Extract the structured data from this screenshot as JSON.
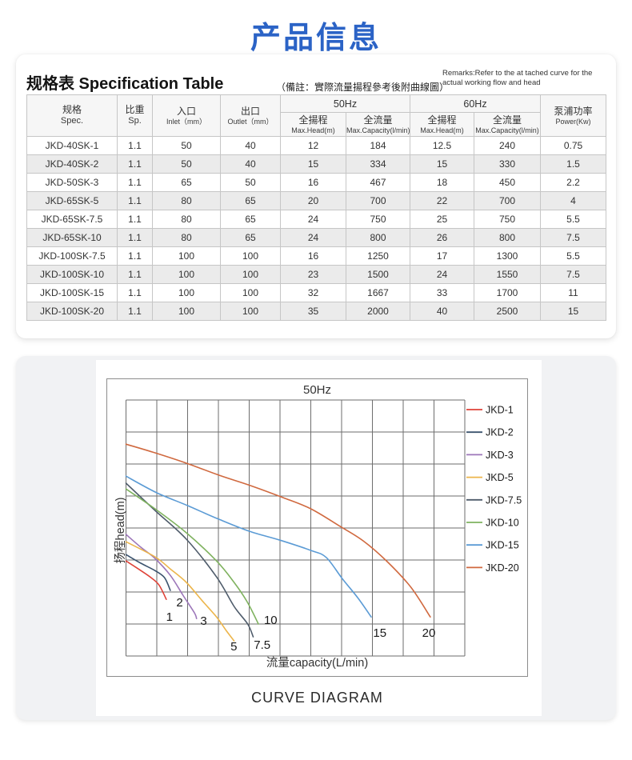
{
  "title": "产品信息",
  "accent_color": "#2b63c6",
  "spec": {
    "title": "规格表 Specification Table",
    "note": "（備註：實際流量揚程參考後附曲線圖）",
    "remarks": "Remarks:Refer to the at tached curve for the actual working flow and head",
    "table": {
      "columns": [
        {
          "zh": "规格",
          "en": "Spec."
        },
        {
          "zh": "比重",
          "en": "Sp."
        },
        {
          "zh": "入口",
          "en": "Inlet（mm）"
        },
        {
          "zh": "出口",
          "en": "Outlet（mm）"
        }
      ],
      "groups": [
        {
          "label": "50Hz",
          "children": [
            {
              "zh": "全揚程",
              "en": "Max.Head(m)"
            },
            {
              "zh": "全流量",
              "en": "Max.Capacity(l/min)"
            }
          ]
        },
        {
          "label": "60Hz",
          "children": [
            {
              "zh": "全揚程",
              "en": "Max.Head(m)"
            },
            {
              "zh": "全流量",
              "en": "Max.Capacity(l/min)"
            }
          ]
        }
      ],
      "power": {
        "zh": "泵浦功率",
        "en": "Power(Kw)"
      },
      "rows": [
        [
          "JKD-40SK-1",
          "1.1",
          "50",
          "40",
          "12",
          "184",
          "12.5",
          "240",
          "0.75"
        ],
        [
          "JKD-40SK-2",
          "1.1",
          "50",
          "40",
          "15",
          "334",
          "15",
          "330",
          "1.5"
        ],
        [
          "JKD-50SK-3",
          "1.1",
          "65",
          "50",
          "16",
          "467",
          "18",
          "450",
          "2.2"
        ],
        [
          "JKD-65SK-5",
          "1.1",
          "80",
          "65",
          "20",
          "700",
          "22",
          "700",
          "4"
        ],
        [
          "JKD-65SK-7.5",
          "1.1",
          "80",
          "65",
          "24",
          "750",
          "25",
          "750",
          "5.5"
        ],
        [
          "JKD-65SK-10",
          "1.1",
          "80",
          "65",
          "24",
          "800",
          "26",
          "800",
          "7.5"
        ],
        [
          "JKD-100SK-7.5",
          "1.1",
          "100",
          "100",
          "16",
          "1250",
          "17",
          "1300",
          "5.5"
        ],
        [
          "JKD-100SK-10",
          "1.1",
          "100",
          "100",
          "23",
          "1500",
          "24",
          "1550",
          "7.5"
        ],
        [
          "JKD-100SK-15",
          "1.1",
          "100",
          "100",
          "32",
          "1667",
          "33",
          "1700",
          "11"
        ],
        [
          "JKD-100SK-20",
          "1.1",
          "100",
          "100",
          "35",
          "2000",
          "40",
          "2500",
          "15"
        ]
      ]
    }
  },
  "chart_data": {
    "type": "line",
    "title": "50Hz",
    "xlabel": "流量capacity(L/min)",
    "ylabel": "扬程head(m)",
    "caption": "CURVE DIAGRAM",
    "legend_position": "right",
    "grid": {
      "cols": 11,
      "rows": 8,
      "tick_labels": "none shown on axes"
    },
    "points_units": "grid cells (x: 0-11 columns, y: 0-8 rows from top), curves digitized from plot",
    "series": [
      {
        "name": "JKD-1",
        "color": "#df4338",
        "end_label": {
          "text": "1",
          "gx": 1.41,
          "gy": 6.9,
          "anchor": "middle"
        },
        "points": [
          [
            0,
            5.03
          ],
          [
            0.48,
            5.33
          ],
          [
            0.81,
            5.55
          ],
          [
            1.07,
            5.78
          ],
          [
            1.31,
            6.23
          ]
        ]
      },
      {
        "name": "JKD-2",
        "color": "#3b536e",
        "end_label": {
          "text": "2",
          "gx": 1.74,
          "gy": 6.45,
          "anchor": "middle"
        },
        "points": [
          [
            0,
            4.83
          ],
          [
            0.48,
            5.1
          ],
          [
            0.94,
            5.33
          ],
          [
            1.25,
            5.55
          ],
          [
            1.44,
            5.95
          ]
        ]
      },
      {
        "name": "JKD-3",
        "color": "#9c76b9",
        "end_label": {
          "text": "3",
          "gx": 2.52,
          "gy": 7.02,
          "anchor": "middle"
        },
        "points": [
          [
            0,
            4.2
          ],
          [
            0.48,
            4.6
          ],
          [
            0.94,
            4.95
          ],
          [
            1.44,
            5.48
          ],
          [
            1.85,
            6.1
          ],
          [
            2.22,
            6.65
          ],
          [
            2.29,
            6.83
          ]
        ]
      },
      {
        "name": "JKD-5",
        "color": "#ecb54b",
        "end_label": {
          "text": "5",
          "gx": 3.5,
          "gy": 7.83,
          "anchor": "middle"
        },
        "points": [
          [
            0,
            4.43
          ],
          [
            0.94,
            4.9
          ],
          [
            1.44,
            5.28
          ],
          [
            1.96,
            5.7
          ],
          [
            2.48,
            6.28
          ],
          [
            2.94,
            6.78
          ],
          [
            3.25,
            7.2
          ],
          [
            3.51,
            7.53
          ]
        ]
      },
      {
        "name": "JKD-7.5",
        "color": "#4f5c6b",
        "end_label": {
          "text": "7.5",
          "gx": 4.42,
          "gy": 7.78,
          "anchor": "middle"
        },
        "points": [
          [
            0,
            2.6
          ],
          [
            0.94,
            3.45
          ],
          [
            1.96,
            4.35
          ],
          [
            2.94,
            5.53
          ],
          [
            3.51,
            6.45
          ],
          [
            3.95,
            7.0
          ],
          [
            4.13,
            7.4
          ]
        ]
      },
      {
        "name": "JKD-10",
        "color": "#7fb25f",
        "end_label": {
          "text": "10",
          "gx": 4.48,
          "gy": 7.0,
          "anchor": "start"
        },
        "points": [
          [
            0,
            2.78
          ],
          [
            0.94,
            3.4
          ],
          [
            1.96,
            4.15
          ],
          [
            2.94,
            5.03
          ],
          [
            3.51,
            5.7
          ],
          [
            3.93,
            6.3
          ],
          [
            4.3,
            7.0
          ]
        ]
      },
      {
        "name": "JKD-15",
        "color": "#5b9bd5",
        "end_label": {
          "text": "15",
          "gx": 8.24,
          "gy": 7.4,
          "anchor": "middle"
        },
        "points": [
          [
            0,
            2.38
          ],
          [
            1,
            2.9
          ],
          [
            2,
            3.3
          ],
          [
            3,
            3.72
          ],
          [
            4,
            4.1
          ],
          [
            5,
            4.38
          ],
          [
            6,
            4.7
          ],
          [
            6.5,
            4.92
          ],
          [
            7.02,
            5.58
          ],
          [
            7.54,
            6.2
          ],
          [
            7.96,
            6.78
          ]
        ]
      },
      {
        "name": "JKD-20",
        "color": "#d0693f",
        "end_label": {
          "text": "20",
          "gx": 9.83,
          "gy": 7.4,
          "anchor": "middle"
        },
        "points": [
          [
            0,
            1.38
          ],
          [
            0.94,
            1.65
          ],
          [
            1.98,
            1.98
          ],
          [
            3.02,
            2.35
          ],
          [
            4.06,
            2.68
          ],
          [
            5.1,
            3.05
          ],
          [
            6.0,
            3.4
          ],
          [
            6.92,
            3.93
          ],
          [
            7.7,
            4.4
          ],
          [
            8.48,
            5.05
          ],
          [
            9.25,
            5.85
          ],
          [
            9.88,
            6.78
          ]
        ]
      }
    ]
  }
}
